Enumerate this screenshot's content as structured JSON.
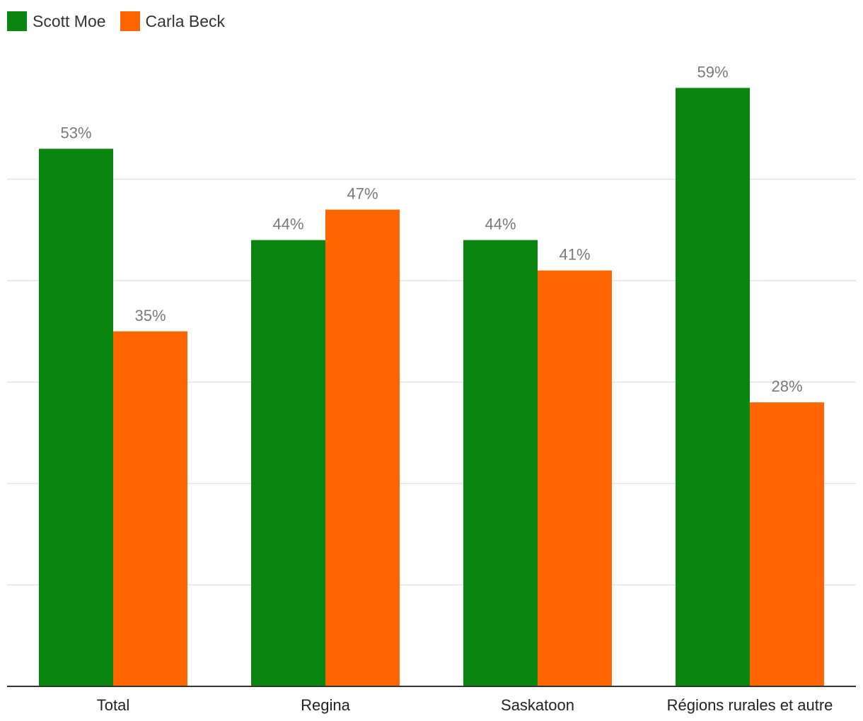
{
  "legend": [
    {
      "name": "Scott Moe",
      "color": "#0a8510"
    },
    {
      "name": "Carla Beck",
      "color": "#ff6600"
    }
  ],
  "chart_data": {
    "type": "bar",
    "title": "",
    "xlabel": "",
    "ylabel": "",
    "categories": [
      "Total",
      "Regina",
      "Saskatoon",
      "Régions rurales et autre"
    ],
    "series": [
      {
        "name": "Scott Moe",
        "color": "#0a8510",
        "values": [
          53,
          44,
          44,
          59
        ],
        "labels": [
          "53%",
          "44%",
          "44%",
          "59%"
        ]
      },
      {
        "name": "Carla Beck",
        "color": "#ff6600",
        "values": [
          35,
          47,
          41,
          28
        ],
        "labels": [
          "35%",
          "47%",
          "41%",
          "28%"
        ]
      }
    ],
    "ylim": [
      0,
      60
    ],
    "gridlines": [
      10,
      20,
      30,
      40,
      50
    ],
    "grid": true
  }
}
